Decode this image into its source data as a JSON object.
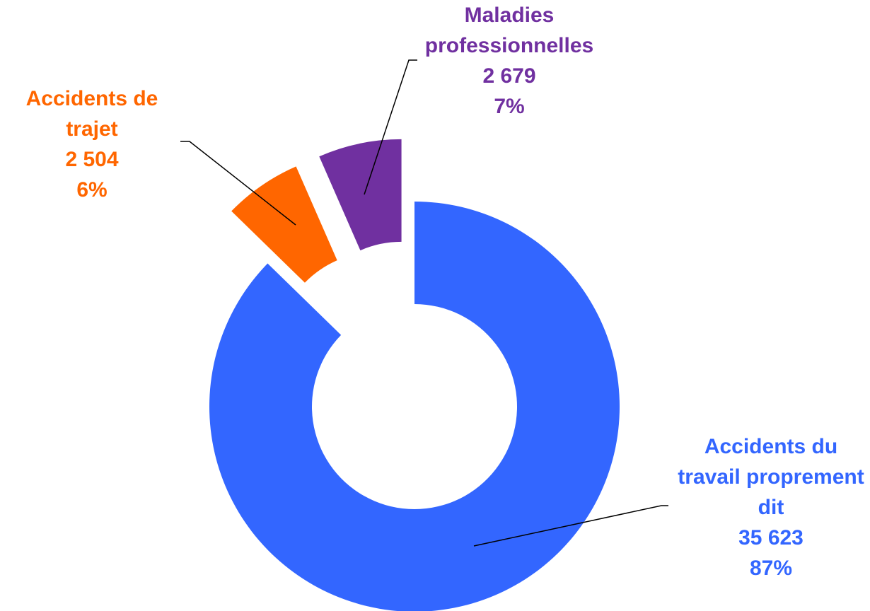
{
  "chart_data": {
    "type": "donut",
    "categories": [
      "Accidents du travail proprement dit",
      "Accidents de trajet",
      "Maladies professionnelles"
    ],
    "values": [
      35623,
      2504,
      2679
    ],
    "value_labels": [
      "35 623",
      "2 504",
      "2 679"
    ],
    "percents": [
      87,
      6,
      7
    ],
    "percent_labels": [
      "87%",
      "6%",
      "7%"
    ],
    "colors": [
      "#3366ff",
      "#ff6600",
      "#7030a0"
    ]
  }
}
